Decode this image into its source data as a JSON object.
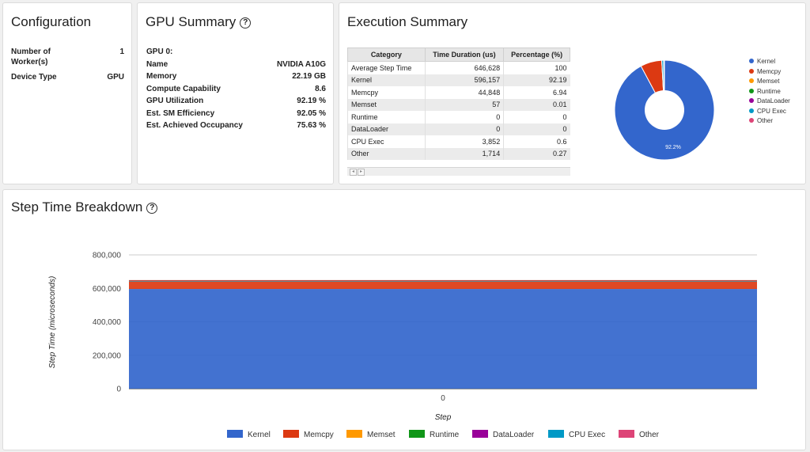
{
  "configuration": {
    "title": "Configuration",
    "rows": [
      {
        "label": "Number of",
        "label2": "Worker(s)",
        "value": "1"
      },
      {
        "label": "Device Type",
        "value": "GPU"
      }
    ]
  },
  "gpu_summary": {
    "title": "GPU Summary",
    "help_icon": "help-circle-icon",
    "header": "GPU 0:",
    "rows": [
      {
        "label": "Name",
        "value": "NVIDIA A10G"
      },
      {
        "label": "Memory",
        "value": "22.19 GB"
      },
      {
        "label": "Compute Capability",
        "value": "8.6"
      },
      {
        "label": "GPU Utilization",
        "value": "92.19 %"
      },
      {
        "label": "Est. SM Efficiency",
        "value": "92.05 %"
      },
      {
        "label": "Est. Achieved Occupancy",
        "value": "75.63 %"
      }
    ]
  },
  "execution_summary": {
    "title": "Execution Summary",
    "columns": [
      "Category",
      "Time Duration (us)",
      "Percentage (%)"
    ],
    "rows": [
      {
        "category": "Average Step Time",
        "duration": "646,628",
        "percent": "100"
      },
      {
        "category": "Kernel",
        "duration": "596,157",
        "percent": "92.19"
      },
      {
        "category": "Memcpy",
        "duration": "44,848",
        "percent": "6.94"
      },
      {
        "category": "Memset",
        "duration": "57",
        "percent": "0.01"
      },
      {
        "category": "Runtime",
        "duration": "0",
        "percent": "0"
      },
      {
        "category": "DataLoader",
        "duration": "0",
        "percent": "0"
      },
      {
        "category": "CPU Exec",
        "duration": "3,852",
        "percent": "0.6"
      },
      {
        "category": "Other",
        "duration": "1,714",
        "percent": "0.27"
      }
    ],
    "scroll_left": "◂",
    "scroll_right": "▸"
  },
  "colors": {
    "Kernel": "#3366cc",
    "Memcpy": "#dc3912",
    "Memset": "#ff9900",
    "Runtime": "#109618",
    "DataLoader": "#990099",
    "CPU Exec": "#0099c6",
    "Other": "#dd4477"
  },
  "step_time": {
    "title": "Step Time Breakdown"
  },
  "chart_data": [
    {
      "type": "pie",
      "labels": [
        "Kernel",
        "Memcpy",
        "Memset",
        "Runtime",
        "DataLoader",
        "CPU Exec",
        "Other"
      ],
      "values": [
        596157,
        44848,
        57,
        0,
        0,
        3852,
        1714
      ],
      "slice_label": "92.2%",
      "legend": "right"
    },
    {
      "type": "area",
      "stacked": true,
      "x": [
        0
      ],
      "xlabel": "Step",
      "ylabel": "Step Time (microseconds)",
      "ylim": [
        0,
        800000
      ],
      "yticks": [
        0,
        200000,
        400000,
        600000,
        800000
      ],
      "ytick_labels": [
        "0",
        "200,000",
        "400,000",
        "600,000",
        "800,000"
      ],
      "xtick_labels": [
        "0"
      ],
      "series": [
        {
          "name": "Kernel",
          "values": [
            596157
          ]
        },
        {
          "name": "Memcpy",
          "values": [
            44848
          ]
        },
        {
          "name": "Memset",
          "values": [
            57
          ]
        },
        {
          "name": "Runtime",
          "values": [
            0
          ]
        },
        {
          "name": "DataLoader",
          "values": [
            0
          ]
        },
        {
          "name": "CPU Exec",
          "values": [
            3852
          ]
        },
        {
          "name": "Other",
          "values": [
            1714
          ]
        }
      ],
      "legend": "bottom"
    }
  ]
}
